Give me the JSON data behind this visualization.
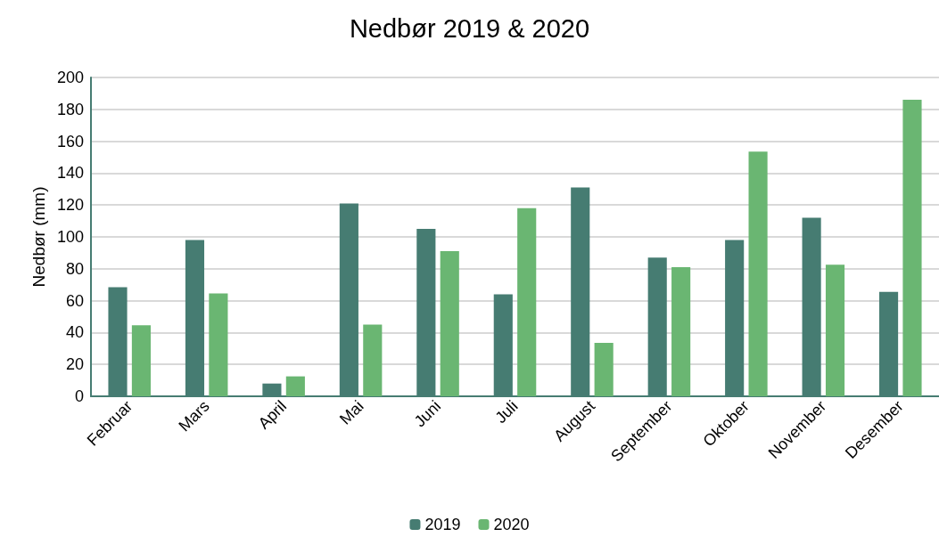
{
  "chart_data": {
    "type": "bar",
    "title": "Nedbør 2019 & 2020",
    "ylabel": "Nedbør (mm)",
    "categories": [
      "Februar",
      "Mars",
      "April",
      "Mai",
      "Juni",
      "Juli",
      "August",
      "September",
      "Oktober",
      "November",
      "Desember"
    ],
    "series": [
      {
        "name": "2019",
        "color": "#467c72",
        "values": [
          68.5,
          98,
          8,
          121,
          105,
          64,
          131,
          87,
          98,
          112,
          65.5
        ]
      },
      {
        "name": "2020",
        "color": "#6ab672",
        "values": [
          44.5,
          64.5,
          12.5,
          45,
          91,
          118,
          33.5,
          81,
          153.5,
          82.5,
          186
        ]
      }
    ],
    "ylim": [
      0,
      200
    ],
    "yticks": [
      0,
      20,
      40,
      60,
      80,
      100,
      120,
      140,
      160,
      180,
      200
    ],
    "grid": "y",
    "legend": "bottom"
  }
}
